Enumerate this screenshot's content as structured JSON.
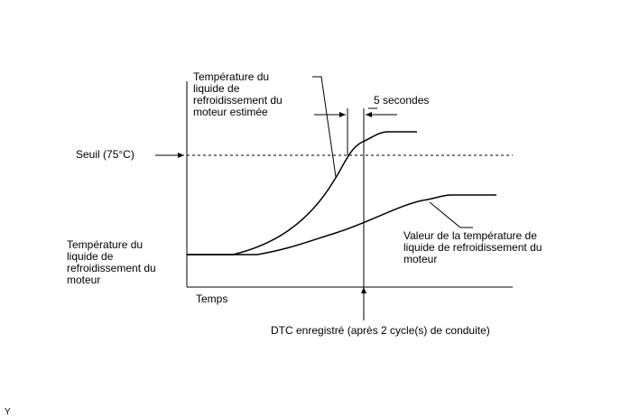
{
  "labels": {
    "estimated_ect": "Température du\nliquide de\nrefroidissement du\nmoteur estimée",
    "interval": "5 secondes",
    "threshold": "Seuil (75°C)",
    "ect": "Température du\nliquide de\nrefroidissement du\nmoteur",
    "ect_value": "Valeur de la température de\nliquide de refroidissement du\nmoteur",
    "time_axis": "Temps",
    "dtc": "DTC enregistré (après 2 cycle(s) de conduite)",
    "corner_mark": "Y"
  },
  "style": {
    "line_color": "#000000",
    "threshold_dash": "3,3"
  }
}
